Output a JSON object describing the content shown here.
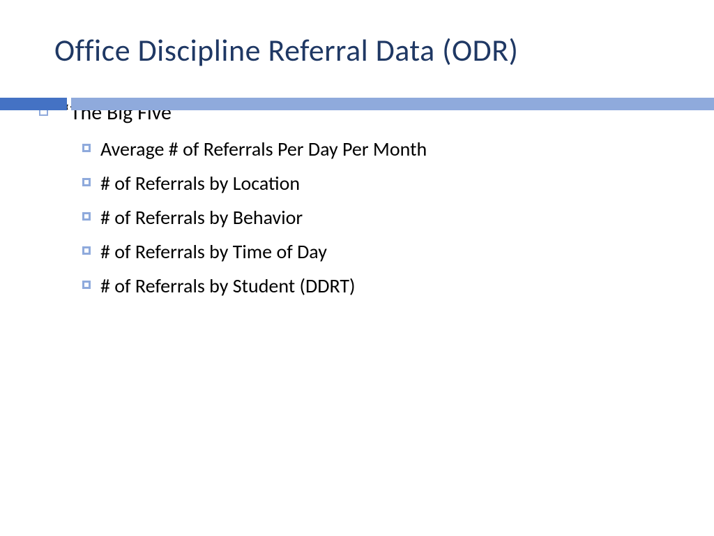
{
  "title": {
    "text": "Office Discipline Referral Data (ODR)",
    "color": "#1f3864",
    "fontsize": 44
  },
  "divider": {
    "accent_color": "#4472c4",
    "main_color": "#8faadc",
    "accent_width": 96,
    "gap_width": 6
  },
  "bullets": {
    "level1_marker_color": "#8faadc",
    "level2_marker_color": "#8faadc",
    "items": [
      {
        "text": "“The Big Five”",
        "children": [
          {
            "text": "Average # of Referrals Per Day Per Month"
          },
          {
            "text": "# of Referrals by Location"
          },
          {
            "text": "# of Referrals by Behavior"
          },
          {
            "text": "# of Referrals by Time of Day"
          },
          {
            "text": "# of Referrals by Student (DDRT)"
          }
        ]
      }
    ]
  }
}
